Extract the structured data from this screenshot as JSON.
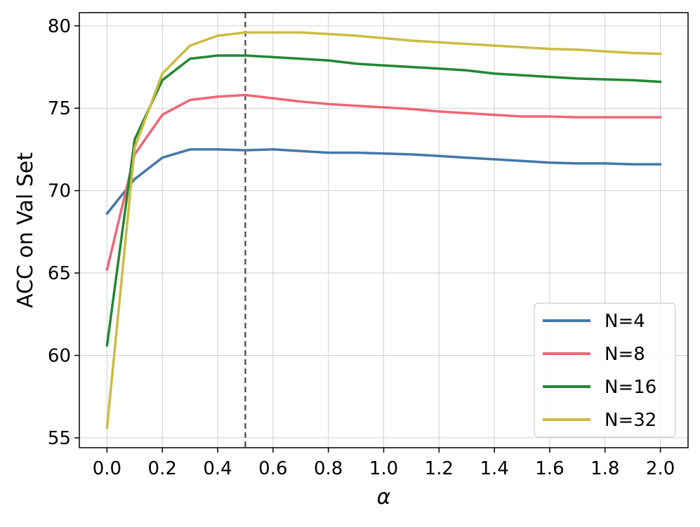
{
  "chart_data": {
    "type": "line",
    "xlabel": "α",
    "ylabel": "ACC on Val Set",
    "xlim": [
      -0.1,
      2.1
    ],
    "ylim": [
      54.4,
      80.8
    ],
    "xticks": [
      0.0,
      0.2,
      0.4,
      0.6,
      0.8,
      1.0,
      1.2,
      1.4,
      1.6,
      1.8,
      2.0
    ],
    "xtick_labels": [
      "0.0",
      "0.2",
      "0.4",
      "0.6",
      "0.8",
      "1.0",
      "1.2",
      "1.4",
      "1.6",
      "1.8",
      "2.0"
    ],
    "yticks": [
      55,
      60,
      65,
      70,
      75,
      80
    ],
    "ytick_labels": [
      "55",
      "60",
      "65",
      "70",
      "75",
      "80"
    ],
    "grid": true,
    "legend_position": "lower-right",
    "reference_line": {
      "x": 0.5,
      "style": "dashed",
      "color": "#444444"
    },
    "x": [
      0.0,
      0.1,
      0.2,
      0.3,
      0.4,
      0.5,
      0.6,
      0.7,
      0.8,
      0.9,
      1.0,
      1.1,
      1.2,
      1.3,
      1.4,
      1.5,
      1.6,
      1.7,
      1.8,
      1.9,
      2.0
    ],
    "series": [
      {
        "name": "N=4",
        "color": "#4477aa",
        "values": [
          68.6,
          70.7,
          72.0,
          72.5,
          72.5,
          72.45,
          72.5,
          72.4,
          72.3,
          72.3,
          72.25,
          72.2,
          72.1,
          72.0,
          71.9,
          71.8,
          71.7,
          71.65,
          71.65,
          71.6,
          71.6
        ]
      },
      {
        "name": "N=8",
        "color": "#ee6677",
        "values": [
          65.2,
          72.2,
          74.6,
          75.5,
          75.7,
          75.8,
          75.6,
          75.4,
          75.25,
          75.15,
          75.05,
          74.95,
          74.8,
          74.7,
          74.6,
          74.5,
          74.5,
          74.45,
          74.45,
          74.45,
          74.45
        ]
      },
      {
        "name": "N=16",
        "color": "#228833",
        "values": [
          60.6,
          73.1,
          76.7,
          78.0,
          78.2,
          78.2,
          78.1,
          78.0,
          77.9,
          77.7,
          77.6,
          77.5,
          77.4,
          77.3,
          77.1,
          77.0,
          76.9,
          76.8,
          76.75,
          76.7,
          76.6
        ]
      },
      {
        "name": "N=32",
        "color": "#ccbb44",
        "values": [
          55.6,
          72.6,
          77.1,
          78.8,
          79.4,
          79.6,
          79.6,
          79.6,
          79.5,
          79.4,
          79.25,
          79.1,
          79.0,
          78.9,
          78.8,
          78.7,
          78.6,
          78.55,
          78.45,
          78.35,
          78.3
        ]
      }
    ]
  }
}
